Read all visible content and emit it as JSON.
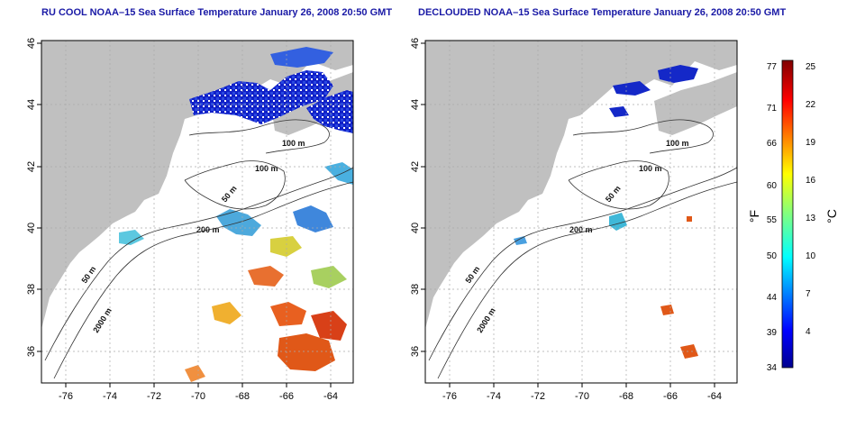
{
  "panels": [
    {
      "title": "RU COOL NOAA–15 Sea Surface Temperature January 26, 2008 20:50 GMT",
      "x_ticks": [
        "-76",
        "-74",
        "-72",
        "-70",
        "-68",
        "-66",
        "-64"
      ],
      "y_ticks": [
        "36",
        "38",
        "40",
        "42",
        "44",
        "46"
      ],
      "contour_labels": [
        "100 m",
        "100 m",
        "50 m",
        "200 m",
        "50 m",
        "2000 m"
      ]
    },
    {
      "title": "DECLOUDED NOAA–15 Sea Surface Temperature January 26, 2008 20:50 GMT",
      "x_ticks": [
        "-76",
        "-74",
        "-72",
        "-70",
        "-68",
        "-66",
        "-64"
      ],
      "y_ticks": [
        "36",
        "38",
        "40",
        "42",
        "44",
        "46"
      ],
      "contour_labels": [
        "100 m",
        "100 m",
        "50 m",
        "200 m",
        "50 m",
        "2000 m"
      ]
    }
  ],
  "colorbar": {
    "fahrenheit_label": "°F",
    "celsius_label": "°C",
    "fahrenheit_ticks": [
      "77",
      "71",
      "66",
      "60",
      "55",
      "50",
      "44",
      "39",
      "34"
    ],
    "celsius_ticks": [
      "25",
      "22",
      "19",
      "16",
      "13",
      "10",
      "7",
      "4"
    ]
  },
  "colors": {
    "land": "#c0c0c0",
    "title": "#1a1aa6",
    "cold": "#0000a0",
    "warm": "#d02000"
  }
}
